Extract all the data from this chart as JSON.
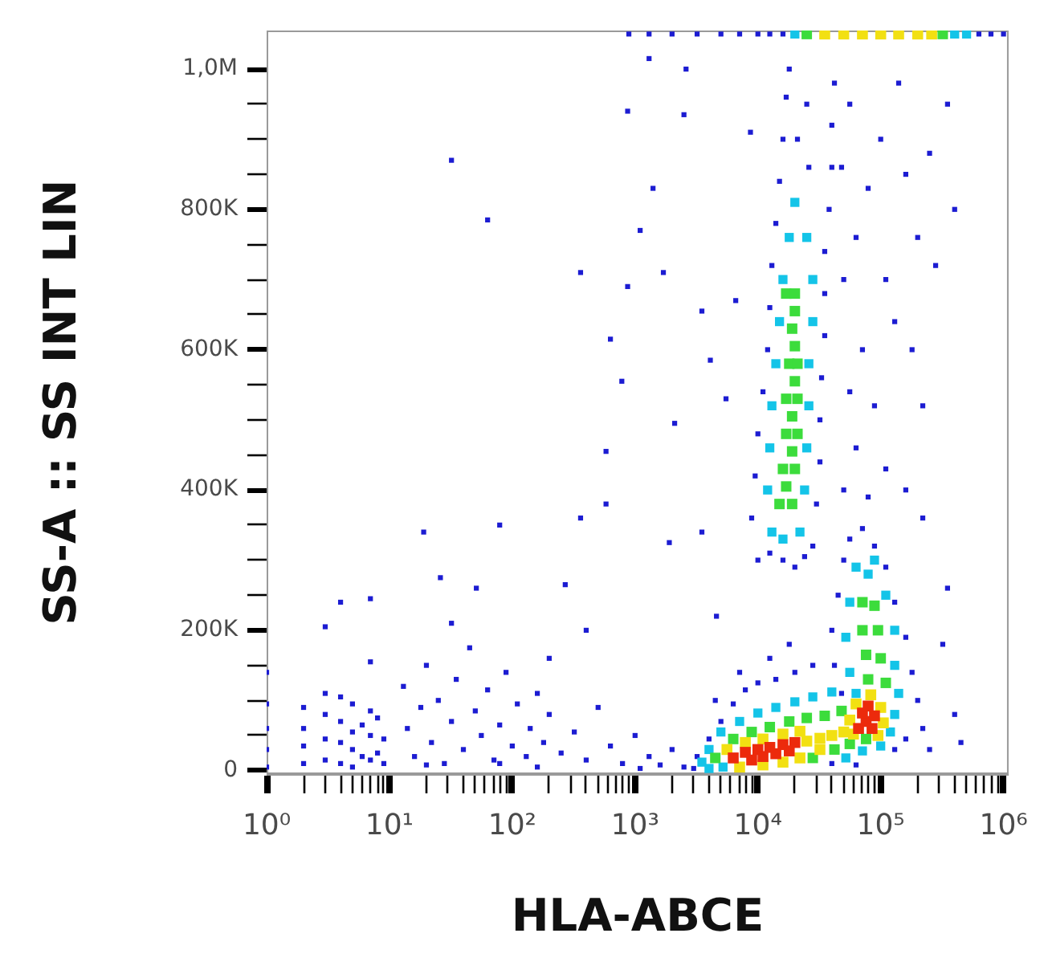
{
  "chart_data": {
    "type": "scatter",
    "xlabel": "HLA-ABCE",
    "ylabel": "SS-A :: SS INT LIN",
    "log": "x",
    "marker": "square",
    "xlim": [
      1,
      1100000
    ],
    "ylim": [
      -5000,
      1055000
    ],
    "xticks": [
      {
        "value": 1,
        "label": "10⁰"
      },
      {
        "value": 2,
        "label": null
      },
      {
        "value": 3,
        "label": null
      },
      {
        "value": 4,
        "label": null
      },
      {
        "value": 5,
        "label": null
      },
      {
        "value": 6,
        "label": null
      },
      {
        "value": 7,
        "label": null
      },
      {
        "value": 8,
        "label": null
      },
      {
        "value": 9,
        "label": null
      },
      {
        "value": 10,
        "label": "10¹"
      },
      {
        "value": 20,
        "label": null
      },
      {
        "value": 30,
        "label": null
      },
      {
        "value": 40,
        "label": null
      },
      {
        "value": 50,
        "label": null
      },
      {
        "value": 60,
        "label": null
      },
      {
        "value": 70,
        "label": null
      },
      {
        "value": 80,
        "label": null
      },
      {
        "value": 90,
        "label": null
      },
      {
        "value": 100,
        "label": "10²"
      },
      {
        "value": 200,
        "label": null
      },
      {
        "value": 300,
        "label": null
      },
      {
        "value": 400,
        "label": null
      },
      {
        "value": 500,
        "label": null
      },
      {
        "value": 600,
        "label": null
      },
      {
        "value": 700,
        "label": null
      },
      {
        "value": 800,
        "label": null
      },
      {
        "value": 900,
        "label": null
      },
      {
        "value": 1000,
        "label": "10³"
      },
      {
        "value": 2000,
        "label": null
      },
      {
        "value": 3000,
        "label": null
      },
      {
        "value": 4000,
        "label": null
      },
      {
        "value": 5000,
        "label": null
      },
      {
        "value": 6000,
        "label": null
      },
      {
        "value": 7000,
        "label": null
      },
      {
        "value": 8000,
        "label": null
      },
      {
        "value": 9000,
        "label": null
      },
      {
        "value": 10000,
        "label": "10⁴"
      },
      {
        "value": 20000,
        "label": null
      },
      {
        "value": 30000,
        "label": null
      },
      {
        "value": 40000,
        "label": null
      },
      {
        "value": 50000,
        "label": null
      },
      {
        "value": 60000,
        "label": null
      },
      {
        "value": 70000,
        "label": null
      },
      {
        "value": 80000,
        "label": null
      },
      {
        "value": 90000,
        "label": null
      },
      {
        "value": 100000,
        "label": "10⁵"
      },
      {
        "value": 200000,
        "label": null
      },
      {
        "value": 300000,
        "label": null
      },
      {
        "value": 400000,
        "label": null
      },
      {
        "value": 500000,
        "label": null
      },
      {
        "value": 600000,
        "label": null
      },
      {
        "value": 700000,
        "label": null
      },
      {
        "value": 800000,
        "label": null
      },
      {
        "value": 900000,
        "label": null
      },
      {
        "value": 1000000,
        "label": "10⁶"
      }
    ],
    "yticks": [
      0,
      {
        "value": 50000,
        "label": null
      },
      {
        "value": 100000,
        "label": null
      },
      {
        "value": 150000,
        "label": null
      },
      {
        "value": 200000,
        "label": "200K"
      },
      {
        "value": 250000,
        "label": null
      },
      {
        "value": 300000,
        "label": null
      },
      {
        "value": 350000,
        "label": null
      },
      {
        "value": 400000,
        "label": "400K"
      },
      {
        "value": 450000,
        "label": null
      },
      {
        "value": 500000,
        "label": null
      },
      {
        "value": 550000,
        "label": null
      },
      {
        "value": 600000,
        "label": "600K"
      },
      {
        "value": 650000,
        "label": null
      },
      {
        "value": 700000,
        "label": null
      },
      {
        "value": 750000,
        "label": null
      },
      {
        "value": 800000,
        "label": "800K"
      },
      {
        "value": 850000,
        "label": null
      },
      {
        "value": 900000,
        "label": null
      },
      {
        "value": 950000,
        "label": null
      },
      {
        "value": 1000000,
        "label": "1,0M"
      }
    ],
    "series": [
      {
        "color": "#1c1cd2",
        "x": [
          1,
          1,
          1,
          1,
          1,
          2,
          2,
          2,
          2,
          3,
          3,
          3,
          3,
          3,
          4,
          4,
          4,
          4,
          4,
          5,
          5,
          5,
          5,
          6,
          6,
          7,
          7,
          7,
          7,
          7,
          8,
          8,
          9,
          9,
          13,
          14,
          16,
          18,
          20,
          22,
          25,
          28,
          32,
          35,
          40,
          45,
          50,
          56,
          63,
          71,
          79,
          89,
          100,
          110,
          130,
          140,
          160,
          180,
          200,
          250,
          320,
          400,
          500,
          630,
          790,
          1000,
          1300,
          1600,
          2000,
          20,
          79,
          160,
          1100,
          32,
          200,
          400,
          32,
          63,
          360,
          1300,
          2600,
          2500,
          870,
          8700,
          1400,
          1100,
          1700,
          870,
          630,
          3500,
          6600,
          780,
          4100,
          5500,
          580,
          2100,
          580,
          360,
          79,
          19,
          26,
          51,
          270,
          1900,
          3500,
          4600,
          18000,
          10000,
          8900,
          9500,
          10000,
          11000,
          12000,
          12500,
          13000,
          14000,
          15000,
          16000,
          17000,
          18000,
          28000,
          30000,
          32000,
          32000,
          33000,
          35000,
          35000,
          35000,
          38000,
          40000,
          40000,
          42000,
          12500,
          16000,
          20000,
          24000,
          21000,
          26000,
          25000,
          50000,
          63000,
          79000,
          110000,
          56000,
          71000,
          89000,
          130000,
          50000,
          63000,
          79000,
          100000,
          56000,
          140000,
          160000,
          200000,
          180000,
          220000,
          160000,
          250000,
          280000,
          48000,
          110000,
          220000,
          350000,
          400000,
          890,
          1300,
          2000,
          3200,
          5000,
          7100,
          10000,
          12500,
          16000,
          630000,
          790000,
          1000000,
          45000,
          50000,
          56000,
          71000,
          89000,
          110000,
          130000,
          160000,
          180000,
          200000,
          40000,
          42000,
          48000,
          220000,
          250000,
          320000,
          400000,
          450000,
          350000,
          2500,
          3200,
          4000,
          5000,
          6300,
          7900,
          10000,
          14000,
          20000,
          28000,
          3000,
          40000,
          63000,
          130000,
          160000,
          4500,
          7100,
          12500
        ],
        "values": [
          5000,
          30000,
          60000,
          95000,
          140000,
          10000,
          35000,
          60000,
          90000,
          15000,
          45000,
          80000,
          110000,
          205000,
          10000,
          40000,
          70000,
          105000,
          240000,
          5000,
          30000,
          55000,
          95000,
          20000,
          65000,
          15000,
          50000,
          85000,
          155000,
          245000,
          25000,
          75000,
          10000,
          45000,
          120000,
          60000,
          20000,
          90000,
          150000,
          40000,
          100000,
          10000,
          70000,
          130000,
          30000,
          175000,
          85000,
          50000,
          115000,
          15000,
          65000,
          140000,
          35000,
          95000,
          20000,
          60000,
          110000,
          40000,
          80000,
          25000,
          55000,
          15000,
          90000,
          35000,
          10000,
          50000,
          20000,
          8000,
          30000,
          8000,
          10000,
          5000,
          3000,
          210000,
          160000,
          200000,
          870000,
          785000,
          710000,
          1015000,
          1000000,
          935000,
          940000,
          910000,
          830000,
          770000,
          710000,
          690000,
          615000,
          655000,
          670000,
          555000,
          585000,
          530000,
          455000,
          495000,
          380000,
          360000,
          350000,
          340000,
          275000,
          260000,
          265000,
          325000,
          340000,
          220000,
          180000,
          300000,
          360000,
          420000,
          480000,
          540000,
          600000,
          660000,
          720000,
          780000,
          840000,
          900000,
          960000,
          1000000,
          320000,
          380000,
          440000,
          500000,
          560000,
          620000,
          680000,
          740000,
          800000,
          860000,
          920000,
          980000,
          310000,
          300000,
          290000,
          305000,
          900000,
          860000,
          950000,
          400000,
          460000,
          390000,
          430000,
          540000,
          600000,
          520000,
          640000,
          700000,
          760000,
          830000,
          900000,
          950000,
          980000,
          850000,
          760000,
          600000,
          520000,
          400000,
          880000,
          720000,
          860000,
          700000,
          360000,
          950000,
          800000,
          1050000,
          1050000,
          1050000,
          1050000,
          1050000,
          1050000,
          1050000,
          1050000,
          1050000,
          1050000,
          1050000,
          1050000,
          250000,
          300000,
          330000,
          345000,
          320000,
          290000,
          240000,
          190000,
          140000,
          100000,
          200000,
          150000,
          110000,
          60000,
          30000,
          180000,
          80000,
          40000,
          260000,
          5000,
          20000,
          45000,
          70000,
          95000,
          115000,
          125000,
          130000,
          140000,
          150000,
          3000,
          10000,
          8000,
          30000,
          45000,
          100000,
          140000,
          160000
        ]
      },
      {
        "color": "#14c4e8",
        "x": [
          13000,
          16000,
          22000,
          12000,
          24000,
          12500,
          25000,
          13000,
          26000,
          14000,
          26000,
          15000,
          28000,
          16000,
          28000,
          18000,
          25000,
          20000,
          63000,
          79000,
          56000,
          110000,
          52000,
          130000,
          56000,
          130000,
          63000,
          140000,
          89000,
          3500,
          4000,
          5000,
          7100,
          10000,
          14000,
          20000,
          28000,
          40000,
          4000,
          5200,
          52000,
          71000,
          100000,
          120000,
          130000,
          20000,
          400000,
          500000
        ],
        "values": [
          340000,
          330000,
          340000,
          400000,
          400000,
          460000,
          460000,
          520000,
          520000,
          580000,
          580000,
          640000,
          640000,
          700000,
          700000,
          760000,
          760000,
          810000,
          290000,
          280000,
          240000,
          250000,
          190000,
          200000,
          140000,
          150000,
          110000,
          110000,
          300000,
          12000,
          30000,
          55000,
          70000,
          82000,
          90000,
          98000,
          105000,
          112000,
          3000,
          5000,
          18000,
          28000,
          35000,
          55000,
          80000,
          1050000,
          1050000,
          1050000
        ]
      },
      {
        "color": "#3cdc3c",
        "x": [
          15000,
          19000,
          16000,
          20000,
          17000,
          21000,
          17000,
          21000,
          18000,
          21000,
          19000,
          17000,
          20000,
          17000,
          19000,
          19000,
          20000,
          20000,
          20000,
          71000,
          89000,
          71000,
          95000,
          76000,
          100000,
          79000,
          110000,
          4500,
          28000,
          42000,
          56000,
          76000,
          6300,
          8900,
          12500,
          18000,
          25000,
          35000,
          48000,
          25000,
          320000
        ],
        "values": [
          380000,
          380000,
          430000,
          430000,
          480000,
          480000,
          530000,
          530000,
          580000,
          580000,
          630000,
          680000,
          680000,
          405000,
          455000,
          505000,
          555000,
          605000,
          655000,
          240000,
          235000,
          200000,
          200000,
          165000,
          160000,
          130000,
          125000,
          18000,
          18000,
          30000,
          38000,
          45000,
          45000,
          55000,
          62000,
          70000,
          75000,
          78000,
          85000,
          1050000,
          1050000
        ]
      },
      {
        "color": "#f2e012",
        "x": [
          7100,
          11000,
          16000,
          22000,
          5600,
          7900,
          11000,
          16000,
          22000,
          25000,
          32000,
          40000,
          50000,
          60000,
          56000,
          63000,
          83000,
          100000,
          105000,
          95000,
          32000,
          35000,
          50000,
          71000,
          100000,
          140000,
          200000,
          260000
        ],
        "values": [
          5000,
          8000,
          12000,
          18000,
          30000,
          40000,
          45000,
          52000,
          56000,
          42000,
          46000,
          50000,
          55000,
          52000,
          72000,
          95000,
          108000,
          90000,
          68000,
          50000,
          30000,
          1050000,
          1050000,
          1050000,
          1050000,
          1050000,
          1050000,
          1050000
        ]
      },
      {
        "color": "#ec2a0c",
        "x": [
          6300,
          7900,
          8900,
          10000,
          11000,
          12500,
          14000,
          16000,
          18000,
          20000,
          66000,
          76000,
          85000,
          71000,
          89000,
          79000
        ],
        "values": [
          18000,
          26000,
          15000,
          30000,
          20000,
          33000,
          24000,
          37000,
          28000,
          40000,
          60000,
          70000,
          60000,
          82000,
          78000,
          92000
        ]
      }
    ]
  }
}
